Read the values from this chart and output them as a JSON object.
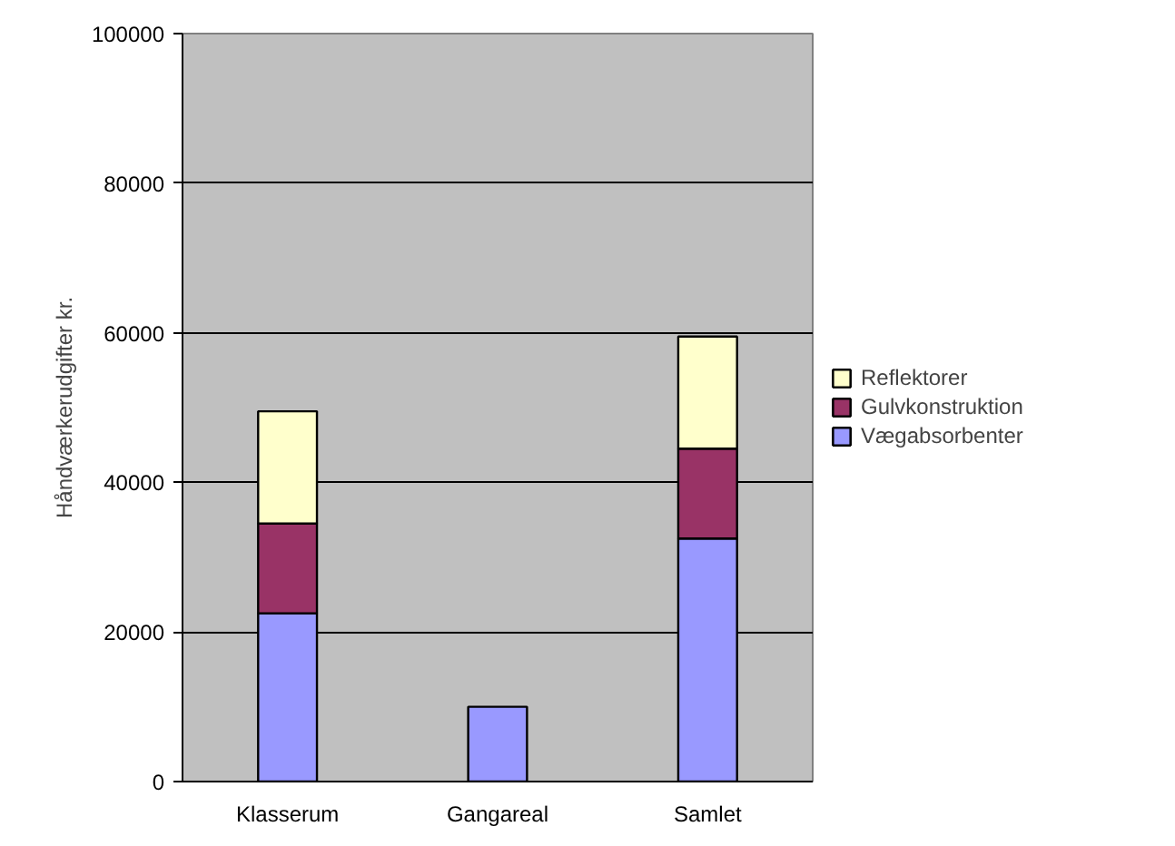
{
  "chart_data": {
    "type": "bar",
    "stacked": true,
    "ylabel": "Håndværkerudgifter kr.",
    "categories": [
      "Klasserum",
      "Gangareal",
      "Samlet"
    ],
    "series": [
      {
        "name": "Vægabsorbenter",
        "color": "#9999ff",
        "values": [
          22500,
          10000,
          32500
        ]
      },
      {
        "name": "Gulvkonstruktion",
        "color": "#993366",
        "values": [
          12000,
          null,
          12000
        ]
      },
      {
        "name": "Reflektorer",
        "color": "#ffffcc",
        "values": [
          15000,
          null,
          15000
        ]
      }
    ],
    "ylim": [
      0,
      100000
    ],
    "yticks": [
      0,
      20000,
      40000,
      60000,
      80000,
      100000
    ],
    "grid": "y",
    "legend": "right"
  }
}
